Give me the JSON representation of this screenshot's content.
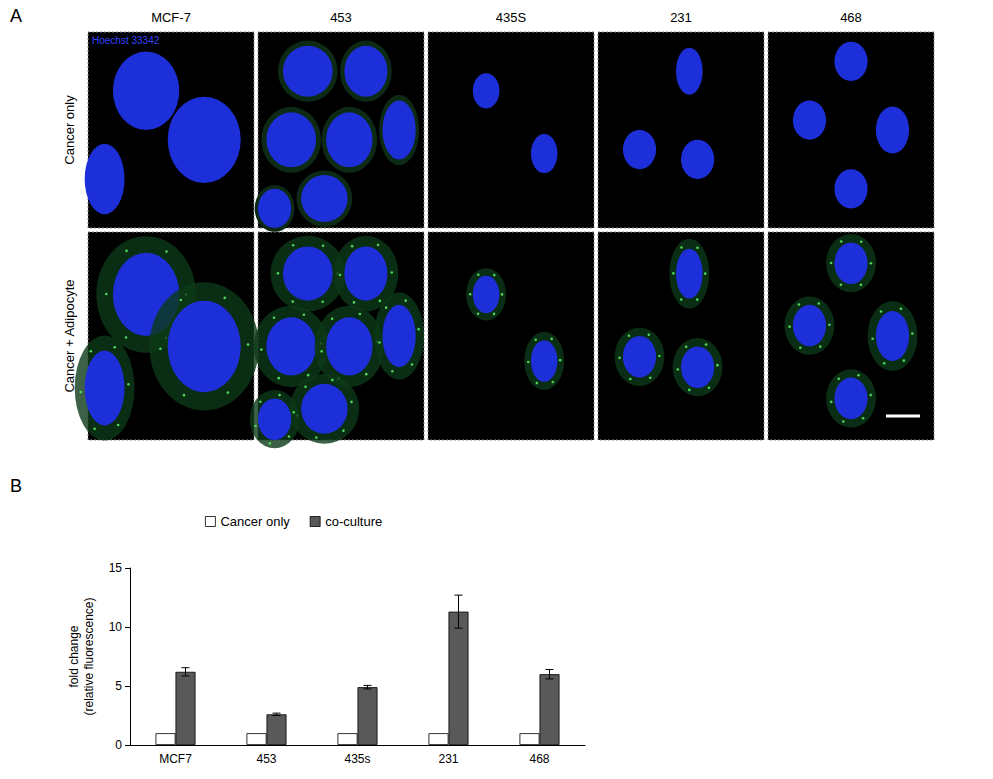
{
  "panel_a": {
    "label": "A",
    "stain": "Hoechst 33342",
    "columns": [
      "MCF-7",
      "453",
      "435S",
      "231",
      "468"
    ],
    "rows": [
      "Cancer only",
      "Cancer + Adipocyte"
    ]
  },
  "panel_b": {
    "label": "B"
  },
  "chart_data": {
    "type": "bar",
    "categories": [
      "MCF7",
      "453",
      "435s",
      "231",
      "468"
    ],
    "series": [
      {
        "name": "Cancer only",
        "color": "#ffffff",
        "values": [
          1,
          1,
          1,
          1,
          1
        ]
      },
      {
        "name": "co-culture",
        "color": "#595959",
        "values": [
          6.2,
          2.6,
          4.9,
          11.3,
          6.0
        ],
        "errors": [
          0.35,
          0.1,
          0.15,
          1.4,
          0.4
        ]
      }
    ],
    "y_label": "fold change\n(relative fluorescence)",
    "ylim": [
      0,
      15
    ],
    "yticks": [
      0,
      5,
      10,
      15
    ],
    "grid": false,
    "legend": "upper left"
  }
}
